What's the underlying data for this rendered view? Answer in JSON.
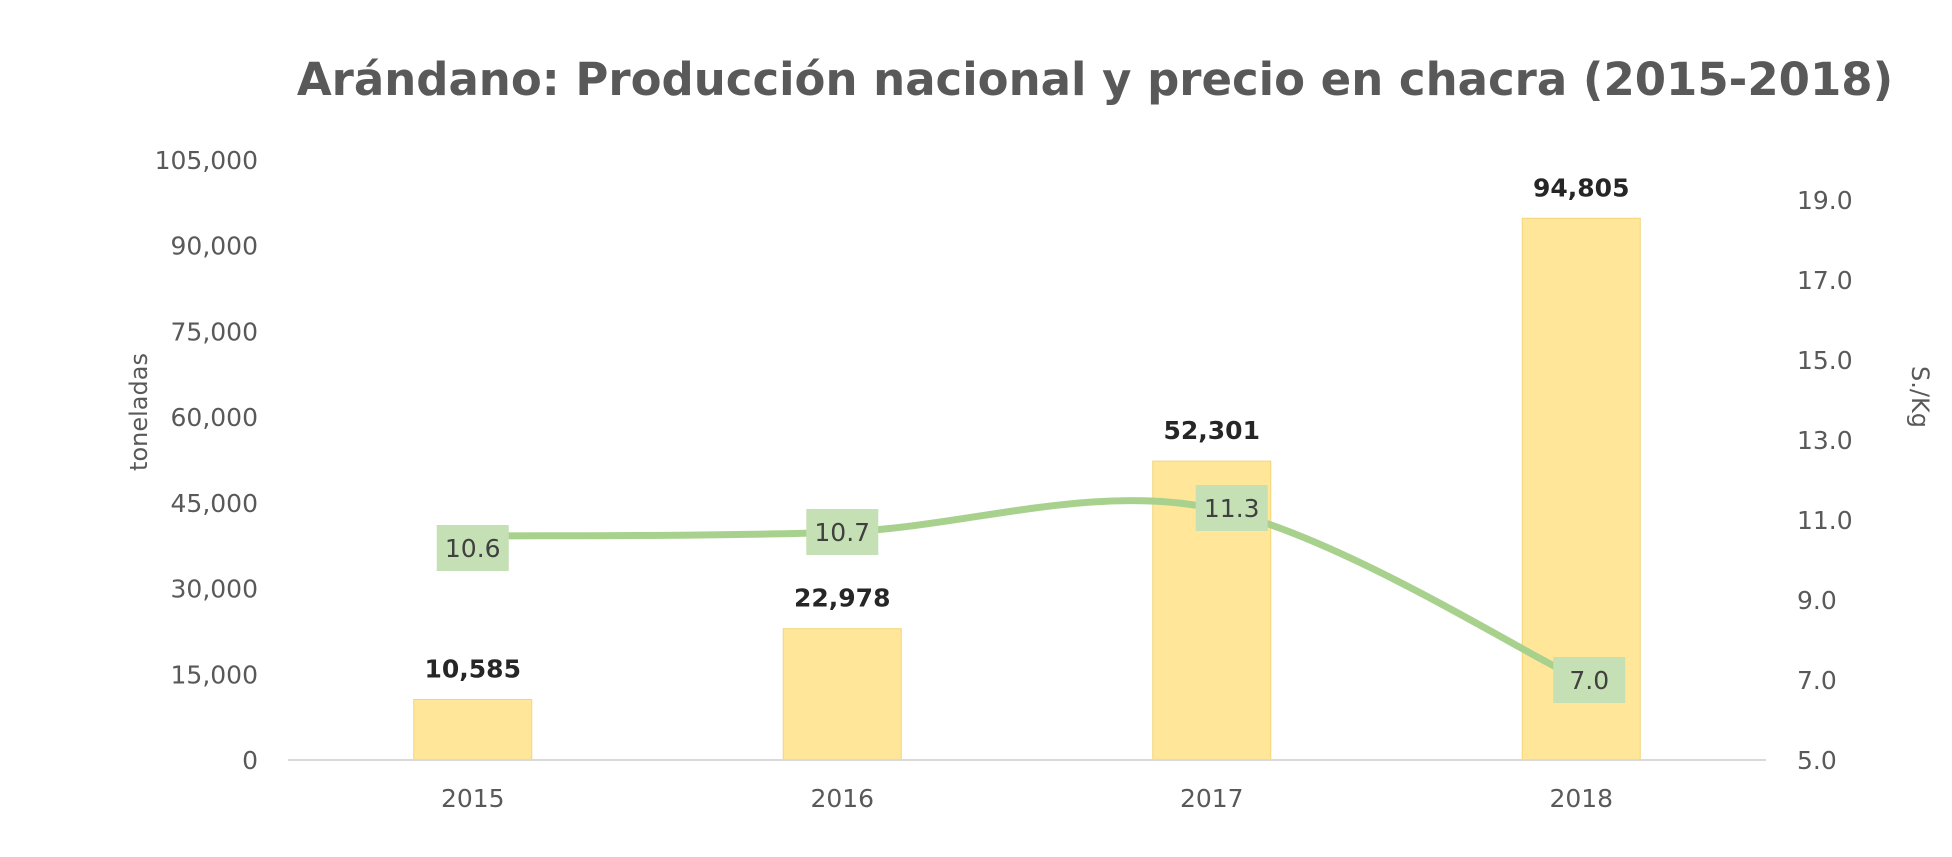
{
  "chart_data": {
    "type": "bar",
    "title": "Arándano: Producción nacional y precio en chacra (2015-2018)",
    "categories": [
      "2015",
      "2016",
      "2017",
      "2018"
    ],
    "ylabel": "toneladas",
    "y2label": "S./Kg",
    "ylim": [
      0,
      105000
    ],
    "yticks": [
      "0",
      "15,000",
      "30,000",
      "45,000",
      "60,000",
      "75,000",
      "90,000",
      "105,000"
    ],
    "y2lim": [
      5.0,
      19.0
    ],
    "y2ticks": [
      "5.0",
      "7.0",
      "9.0",
      "11.0",
      "13.0",
      "15.0",
      "17.0",
      "19.0"
    ],
    "series": [
      {
        "type": "bar",
        "axis": "left",
        "values": [
          10585,
          22978,
          52301,
          94805
        ],
        "labels": [
          "10,585",
          "22,978",
          "52,301",
          "94,805"
        ],
        "color": "#FFE699"
      },
      {
        "type": "line",
        "axis": "right",
        "smooth": true,
        "values": [
          10.6,
          10.7,
          11.3,
          7.0
        ],
        "labels": [
          "10.6",
          "10.7",
          "11.3",
          "7.0"
        ],
        "color": "#A9D18E",
        "label_bg": "#C5E0B4"
      }
    ],
    "grid": false,
    "legend": "none"
  }
}
